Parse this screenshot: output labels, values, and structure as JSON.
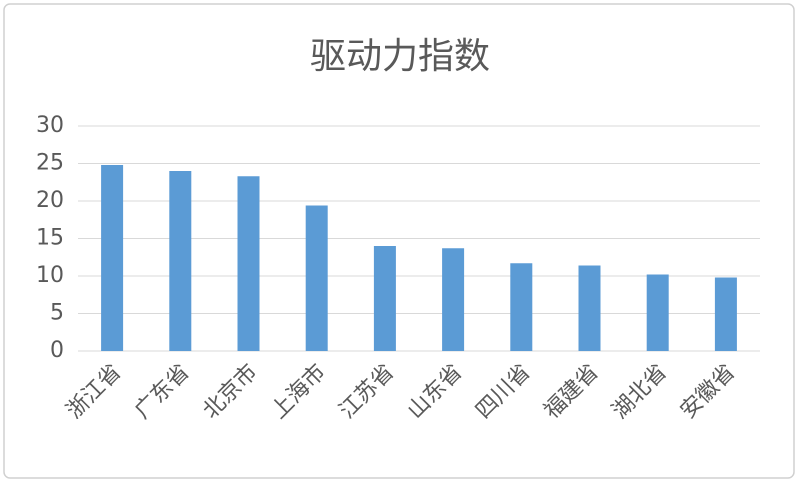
{
  "chart_data": {
    "type": "bar",
    "title": "驱动力指数",
    "categories": [
      "浙江省",
      "广东省",
      "北京市",
      "上海市",
      "江苏省",
      "山东省",
      "四川省",
      "福建省",
      "湖北省",
      "安徽省"
    ],
    "values": [
      24.8,
      24.0,
      23.3,
      19.4,
      14.0,
      13.7,
      11.7,
      11.4,
      10.2,
      9.8
    ],
    "color": "#5b9bd5",
    "ylim": [
      0,
      30
    ],
    "yticks": [
      0,
      5,
      10,
      15,
      20,
      25,
      30
    ],
    "grid": true
  }
}
